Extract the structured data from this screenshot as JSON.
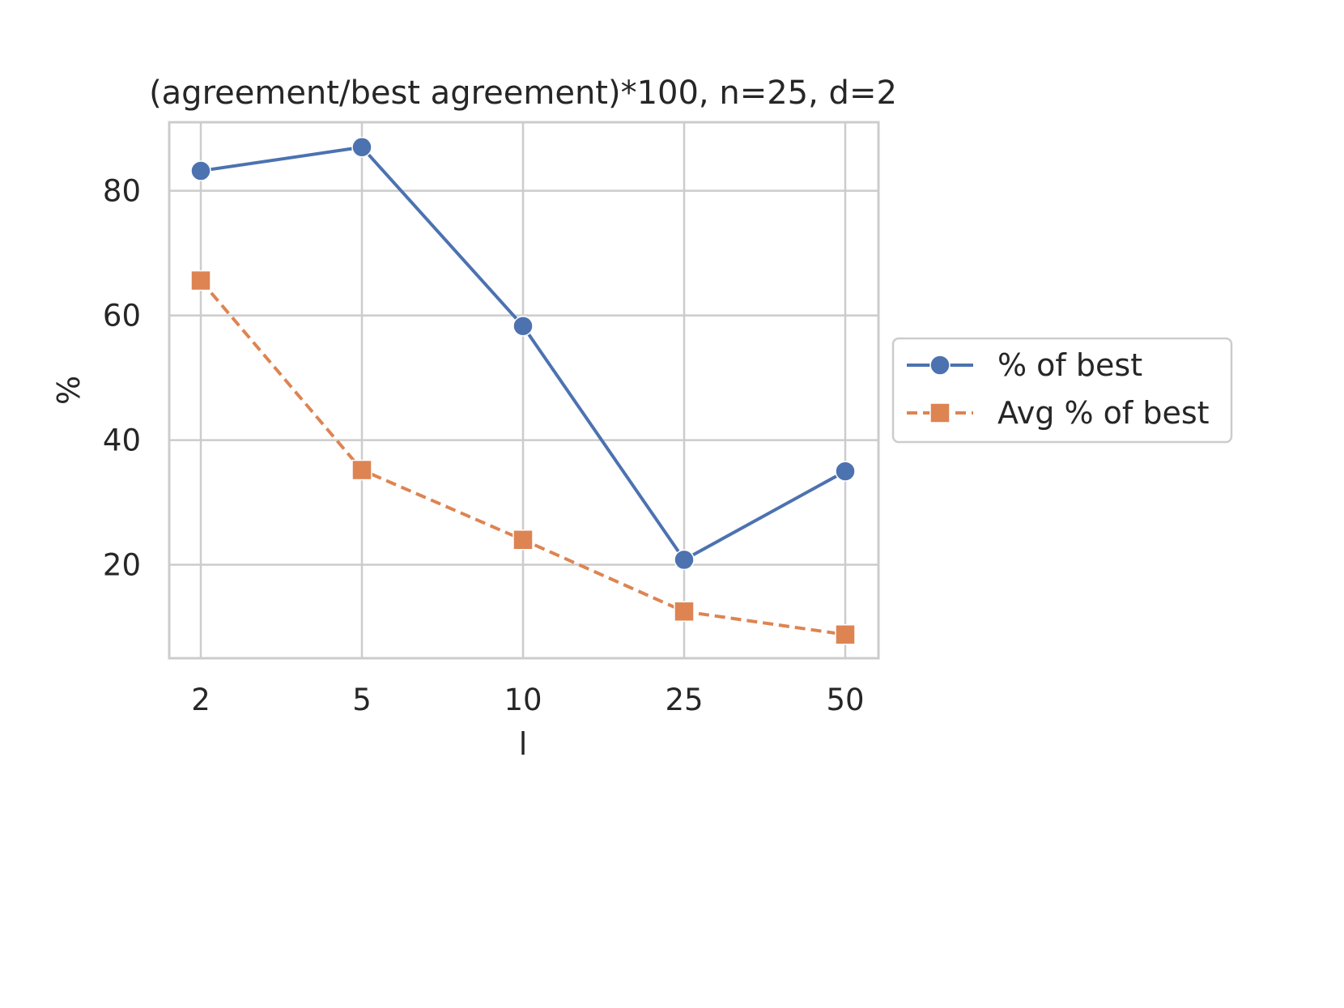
{
  "chart_data": {
    "type": "line",
    "title": "(agreement/best agreement)*100, n=25, d=2",
    "xlabel": "l",
    "ylabel": "%",
    "categories": [
      "2",
      "5",
      "10",
      "25",
      "50"
    ],
    "ylim": [
      5,
      91
    ],
    "yticks": [
      20,
      40,
      60,
      80
    ],
    "grid": true,
    "legend_position": "right, outside plot",
    "series": [
      {
        "name": "% of best",
        "values": [
          83.2,
          87.0,
          58.3,
          20.8,
          35.0
        ],
        "color": "#4c72b0",
        "marker": "circle",
        "linestyle": "solid"
      },
      {
        "name": "Avg % of best",
        "values": [
          65.6,
          35.2,
          24.0,
          12.5,
          8.8
        ],
        "color": "#dd8452",
        "marker": "square",
        "linestyle": "dashed"
      }
    ]
  }
}
